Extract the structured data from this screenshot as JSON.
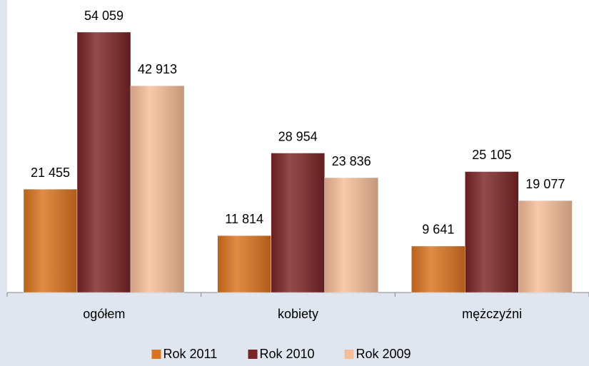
{
  "chart_data": {
    "type": "bar",
    "categories": [
      "ogółem",
      "kobiety",
      "mężczyźni"
    ],
    "series": [
      {
        "name": "Rok 2011",
        "color": "#d9731e",
        "values": [
          21455,
          11814,
          9641
        ],
        "value_labels": [
          "21 455",
          "11 814",
          "9 641"
        ]
      },
      {
        "name": "Rok 2010",
        "color": "#7a2425",
        "values": [
          54059,
          28954,
          25105
        ],
        "value_labels": [
          "54 059",
          "28 954",
          "25 105"
        ]
      },
      {
        "name": "Rok 2009",
        "color": "#f6bd98",
        "values": [
          42913,
          23836,
          19077
        ],
        "value_labels": [
          "42 913",
          "23 836",
          "19 077"
        ]
      }
    ],
    "legend": "bottom"
  }
}
